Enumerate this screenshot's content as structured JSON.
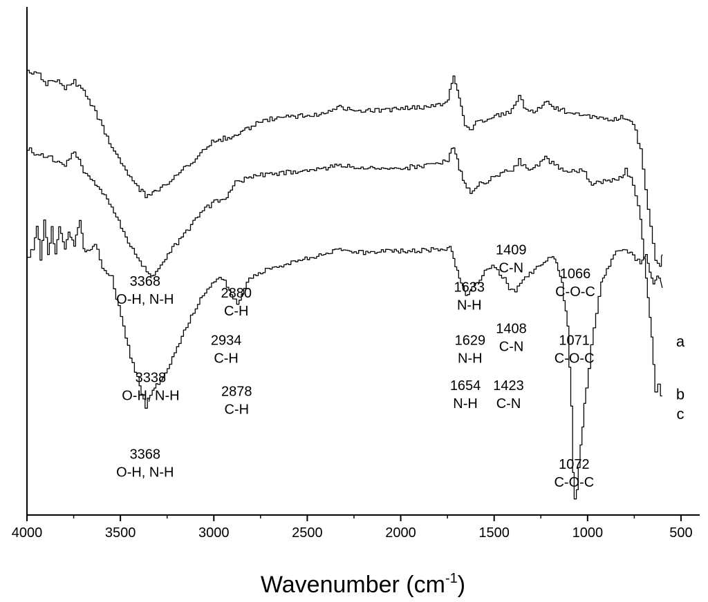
{
  "chart_data": {
    "type": "line",
    "title": "",
    "xlabel": "Wavenumber (cm",
    "xlabel_sup": "-1",
    "xlabel_close": ")",
    "ylabel": "",
    "xlim": [
      4000,
      400
    ],
    "x_reversed": true,
    "grid": false,
    "y_axis_ticks": false,
    "x_ticks": [
      4000,
      3500,
      3000,
      2500,
      2000,
      1500,
      1000,
      500
    ],
    "x_tick_labels": [
      "4000",
      "3500",
      "3000",
      "2500",
      "2000",
      "1500",
      "1000",
      "500"
    ],
    "series": [
      {
        "name": "a",
        "offset": 1.0,
        "points": [
          [
            4000,
            0.9
          ],
          [
            3950,
            0.9
          ],
          [
            3900,
            0.84
          ],
          [
            3850,
            0.86
          ],
          [
            3800,
            0.82
          ],
          [
            3750,
            0.85
          ],
          [
            3700,
            0.8
          ],
          [
            3650,
            0.72
          ],
          [
            3600,
            0.62
          ],
          [
            3550,
            0.52
          ],
          [
            3500,
            0.44
          ],
          [
            3450,
            0.36
          ],
          [
            3400,
            0.3
          ],
          [
            3368,
            0.27
          ],
          [
            3330,
            0.29
          ],
          [
            3300,
            0.3
          ],
          [
            3250,
            0.33
          ],
          [
            3200,
            0.38
          ],
          [
            3150,
            0.42
          ],
          [
            3100,
            0.46
          ],
          [
            3050,
            0.51
          ],
          [
            3000,
            0.55
          ],
          [
            2950,
            0.56
          ],
          [
            2880,
            0.58
          ],
          [
            2800,
            0.62
          ],
          [
            2750,
            0.65
          ],
          [
            2700,
            0.66
          ],
          [
            2600,
            0.67
          ],
          [
            2500,
            0.68
          ],
          [
            2400,
            0.69
          ],
          [
            2330,
            0.72
          ],
          [
            2250,
            0.7
          ],
          [
            2150,
            0.7
          ],
          [
            2000,
            0.71
          ],
          [
            1900,
            0.72
          ],
          [
            1800,
            0.73
          ],
          [
            1750,
            0.76
          ],
          [
            1720,
            0.88
          ],
          [
            1690,
            0.76
          ],
          [
            1660,
            0.62
          ],
          [
            1633,
            0.6
          ],
          [
            1600,
            0.64
          ],
          [
            1550,
            0.66
          ],
          [
            1500,
            0.68
          ],
          [
            1450,
            0.68
          ],
          [
            1409,
            0.7
          ],
          [
            1370,
            0.77
          ],
          [
            1330,
            0.7
          ],
          [
            1280,
            0.7
          ],
          [
            1220,
            0.76
          ],
          [
            1180,
            0.72
          ],
          [
            1100,
            0.69
          ],
          [
            1066,
            0.68
          ],
          [
            1000,
            0.67
          ],
          [
            950,
            0.66
          ],
          [
            880,
            0.66
          ],
          [
            800,
            0.67
          ],
          [
            760,
            0.64
          ],
          [
            720,
            0.5
          ],
          [
            680,
            0.2
          ],
          [
            640,
            -0.06
          ],
          [
            615,
            -0.09
          ],
          [
            605,
            -0.04
          ],
          [
            600,
            -0.03
          ]
        ]
      },
      {
        "name": "b",
        "offset": 0.55,
        "points": [
          [
            4000,
            0.96
          ],
          [
            3950,
            0.93
          ],
          [
            3900,
            0.92
          ],
          [
            3850,
            0.9
          ],
          [
            3800,
            0.88
          ],
          [
            3750,
            0.95
          ],
          [
            3700,
            0.84
          ],
          [
            3650,
            0.8
          ],
          [
            3600,
            0.74
          ],
          [
            3550,
            0.66
          ],
          [
            3500,
            0.56
          ],
          [
            3450,
            0.46
          ],
          [
            3400,
            0.38
          ],
          [
            3338,
            0.31
          ],
          [
            3300,
            0.35
          ],
          [
            3250,
            0.42
          ],
          [
            3200,
            0.48
          ],
          [
            3150,
            0.54
          ],
          [
            3100,
            0.6
          ],
          [
            3050,
            0.65
          ],
          [
            3000,
            0.69
          ],
          [
            2934,
            0.71
          ],
          [
            2900,
            0.78
          ],
          [
            2850,
            0.8
          ],
          [
            2800,
            0.82
          ],
          [
            2700,
            0.83
          ],
          [
            2600,
            0.84
          ],
          [
            2500,
            0.85
          ],
          [
            2400,
            0.86
          ],
          [
            2330,
            0.88
          ],
          [
            2250,
            0.86
          ],
          [
            2150,
            0.86
          ],
          [
            2000,
            0.86
          ],
          [
            1900,
            0.87
          ],
          [
            1800,
            0.88
          ],
          [
            1750,
            0.9
          ],
          [
            1720,
            0.97
          ],
          [
            1690,
            0.86
          ],
          [
            1660,
            0.78
          ],
          [
            1629,
            0.74
          ],
          [
            1580,
            0.78
          ],
          [
            1530,
            0.8
          ],
          [
            1480,
            0.83
          ],
          [
            1408,
            0.85
          ],
          [
            1370,
            0.9
          ],
          [
            1330,
            0.85
          ],
          [
            1280,
            0.87
          ],
          [
            1230,
            0.92
          ],
          [
            1180,
            0.87
          ],
          [
            1120,
            0.85
          ],
          [
            1071,
            0.84
          ],
          [
            1030,
            0.85
          ],
          [
            980,
            0.78
          ],
          [
            940,
            0.79
          ],
          [
            880,
            0.8
          ],
          [
            820,
            0.81
          ],
          [
            800,
            0.85
          ],
          [
            760,
            0.78
          ],
          [
            720,
            0.6
          ],
          [
            690,
            0.3
          ],
          [
            660,
            0.0
          ],
          [
            640,
            -0.28
          ],
          [
            625,
            -0.24
          ],
          [
            610,
            -0.3
          ],
          [
            600,
            -0.3
          ]
        ]
      },
      {
        "name": "c",
        "offset": 0.0,
        "points": [
          [
            4000,
            0.95
          ],
          [
            3970,
            1.0
          ],
          [
            3950,
            1.12
          ],
          [
            3930,
            0.95
          ],
          [
            3910,
            1.15
          ],
          [
            3890,
            0.98
          ],
          [
            3870,
            1.1
          ],
          [
            3850,
            0.97
          ],
          [
            3830,
            1.1
          ],
          [
            3800,
            1.0
          ],
          [
            3780,
            1.08
          ],
          [
            3750,
            1.02
          ],
          [
            3720,
            1.15
          ],
          [
            3700,
            1.0
          ],
          [
            3670,
            0.98
          ],
          [
            3640,
            1.03
          ],
          [
            3600,
            0.9
          ],
          [
            3550,
            0.85
          ],
          [
            3500,
            0.65
          ],
          [
            3450,
            0.45
          ],
          [
            3400,
            0.3
          ],
          [
            3368,
            0.2
          ],
          [
            3330,
            0.28
          ],
          [
            3300,
            0.32
          ],
          [
            3250,
            0.38
          ],
          [
            3200,
            0.5
          ],
          [
            3150,
            0.6
          ],
          [
            3100,
            0.7
          ],
          [
            3050,
            0.78
          ],
          [
            3000,
            0.84
          ],
          [
            2960,
            0.85
          ],
          [
            2920,
            0.78
          ],
          [
            2878,
            0.72
          ],
          [
            2840,
            0.8
          ],
          [
            2800,
            0.86
          ],
          [
            2750,
            0.88
          ],
          [
            2700,
            0.9
          ],
          [
            2600,
            0.93
          ],
          [
            2500,
            0.95
          ],
          [
            2400,
            0.97
          ],
          [
            2330,
            1.0
          ],
          [
            2250,
            0.98
          ],
          [
            2150,
            0.98
          ],
          [
            2000,
            0.99
          ],
          [
            1900,
            0.99
          ],
          [
            1800,
            1.0
          ],
          [
            1740,
            1.0
          ],
          [
            1720,
            0.95
          ],
          [
            1690,
            0.85
          ],
          [
            1660,
            0.78
          ],
          [
            1654,
            0.76
          ],
          [
            1620,
            0.8
          ],
          [
            1580,
            0.85
          ],
          [
            1540,
            0.9
          ],
          [
            1500,
            0.91
          ],
          [
            1460,
            0.86
          ],
          [
            1423,
            0.8
          ],
          [
            1390,
            0.78
          ],
          [
            1350,
            0.84
          ],
          [
            1300,
            0.88
          ],
          [
            1250,
            0.92
          ],
          [
            1200,
            0.96
          ],
          [
            1170,
            0.93
          ],
          [
            1140,
            0.82
          ],
          [
            1110,
            0.6
          ],
          [
            1090,
            0.2
          ],
          [
            1080,
            -0.15
          ],
          [
            1072,
            -0.27
          ],
          [
            1060,
            -0.22
          ],
          [
            1040,
            0.0
          ],
          [
            1010,
            0.3
          ],
          [
            970,
            0.6
          ],
          [
            930,
            0.82
          ],
          [
            900,
            0.9
          ],
          [
            850,
            0.98
          ],
          [
            800,
            0.99
          ],
          [
            760,
            0.96
          ],
          [
            720,
            0.93
          ],
          [
            690,
            0.97
          ],
          [
            670,
            0.88
          ],
          [
            650,
            0.82
          ],
          [
            630,
            0.86
          ],
          [
            610,
            0.84
          ],
          [
            600,
            0.8
          ]
        ]
      }
    ],
    "annotations": [
      {
        "x": 3368,
        "y": 0.81,
        "lines": [
          "3368",
          "O-H, N-H"
        ]
      },
      {
        "x": 2880,
        "y": 0.75,
        "lines": [
          "2880",
          "C-H"
        ]
      },
      {
        "x": 1633,
        "y": 0.78,
        "lines": [
          "1633",
          "N-H"
        ]
      },
      {
        "x": 1409,
        "y": 0.97,
        "lines": [
          "1409",
          "C-N"
        ]
      },
      {
        "x": 1066,
        "y": 0.85,
        "lines": [
          "1066",
          "C-O-C"
        ]
      },
      {
        "x": 3338,
        "y": 0.32,
        "lines": [
          "3338",
          "O-H, N-H"
        ]
      },
      {
        "x": 2934,
        "y": 0.51,
        "lines": [
          "2934",
          "C-H"
        ]
      },
      {
        "x": 1629,
        "y": 0.51,
        "lines": [
          "1629",
          "N-H"
        ]
      },
      {
        "x": 1408,
        "y": 0.57,
        "lines": [
          "1408",
          "C-N"
        ]
      },
      {
        "x": 1071,
        "y": 0.51,
        "lines": [
          "1071",
          "C-O-C"
        ]
      },
      {
        "x": 2878,
        "y": 0.25,
        "lines": [
          "2878",
          "C-H"
        ]
      },
      {
        "x": 1654,
        "y": 0.28,
        "lines": [
          "1654",
          "N-H"
        ]
      },
      {
        "x": 1423,
        "y": 0.28,
        "lines": [
          "1423",
          "C-N"
        ]
      },
      {
        "x": 3368,
        "y": -0.07,
        "lines": [
          "3368",
          "O-H, N-H"
        ]
      },
      {
        "x": 1072,
        "y": -0.12,
        "lines": [
          "1072",
          "C-O-C"
        ]
      }
    ],
    "series_labels": [
      {
        "text": "a",
        "y": 0.53
      },
      {
        "text": "b",
        "y": 0.26
      },
      {
        "text": "c",
        "y": 0.16
      }
    ]
  }
}
